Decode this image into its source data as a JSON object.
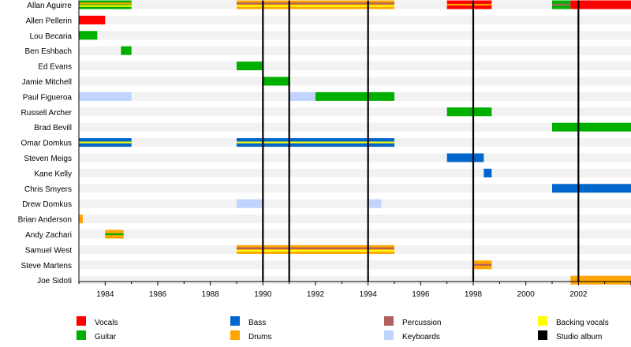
{
  "chart_data": {
    "type": "timeline",
    "title": "",
    "x_range": [
      1983,
      2004
    ],
    "x_ticks": [
      "1984",
      "1986",
      "1988",
      "1990",
      "1992",
      "1994",
      "1996",
      "1998",
      "2000",
      "2002"
    ],
    "members": [
      "Allan Aguirre",
      "Allen Pellerin",
      "Lou Becaria",
      "Ben Eshbach",
      "Ed Evans",
      "Jamie Mitchell",
      "Paul Figueroa",
      "Russell Archer",
      "Brad Bevill",
      "Omar Domkus",
      "Steven Meigs",
      "Kane Kelly",
      "Chris Smyers",
      "Drew Domkus",
      "Brian Anderson",
      "Andy Zachari",
      "Samuel West",
      "Steve Martens",
      "Joe Sidoti"
    ],
    "roles": {
      "vocals": "#ff0000",
      "guitar": "#00b000",
      "bass": "#0066cc",
      "drums": "#ffa500",
      "percussion": "#b06060",
      "keyboards": "#c0d4ff",
      "backing_vocals": "#ffff00",
      "studio_album": "#000000"
    },
    "periods": [
      {
        "member": 0,
        "start": 1983,
        "end": 1985,
        "role": "guitar",
        "stripes": [
          "drums",
          "backing_vocals"
        ]
      },
      {
        "member": 0,
        "start": 1989,
        "end": 1995,
        "role": "drums",
        "stripes": [
          "percussion",
          "backing_vocals"
        ]
      },
      {
        "member": 0,
        "start": 1997,
        "end": 1998.7,
        "role": "vocals",
        "stripes": [
          "drums"
        ]
      },
      {
        "member": 0,
        "start": 2001,
        "end": 2001.7,
        "role": "guitar",
        "stripes": [
          "percussion"
        ]
      },
      {
        "member": 0,
        "start": 2001.7,
        "end": 2004,
        "role": "vocals"
      },
      {
        "member": 1,
        "start": 1983,
        "end": 1984,
        "role": "vocals"
      },
      {
        "member": 2,
        "start": 1983,
        "end": 1983.7,
        "role": "guitar"
      },
      {
        "member": 3,
        "start": 1984.6,
        "end": 1985,
        "role": "guitar"
      },
      {
        "member": 4,
        "start": 1989,
        "end": 1990,
        "role": "guitar"
      },
      {
        "member": 5,
        "start": 1990,
        "end": 1991,
        "role": "guitar"
      },
      {
        "member": 6,
        "start": 1983,
        "end": 1985,
        "role": "keyboards"
      },
      {
        "member": 6,
        "start": 1991,
        "end": 1992,
        "role": "keyboards"
      },
      {
        "member": 6,
        "start": 1992,
        "end": 1995,
        "role": "guitar"
      },
      {
        "member": 7,
        "start": 1997,
        "end": 1998.7,
        "role": "guitar"
      },
      {
        "member": 8,
        "start": 2001,
        "end": 2004,
        "role": "guitar"
      },
      {
        "member": 9,
        "start": 1983,
        "end": 1985,
        "role": "bass",
        "stripes": [
          "backing_vocals"
        ]
      },
      {
        "member": 9,
        "start": 1989,
        "end": 1995,
        "role": "bass",
        "stripes": [
          "backing_vocals"
        ]
      },
      {
        "member": 10,
        "start": 1997,
        "end": 1998.4,
        "role": "bass"
      },
      {
        "member": 11,
        "start": 1998.4,
        "end": 1998.7,
        "role": "bass"
      },
      {
        "member": 12,
        "start": 2001,
        "end": 2004,
        "role": "bass"
      },
      {
        "member": 13,
        "start": 1989,
        "end": 1990,
        "role": "keyboards"
      },
      {
        "member": 13,
        "start": 1994,
        "end": 1994.5,
        "role": "keyboards"
      },
      {
        "member": 14,
        "start": 1983,
        "end": 1983.15,
        "role": "drums"
      },
      {
        "member": 15,
        "start": 1984,
        "end": 1984.7,
        "role": "drums",
        "stripes": [
          "guitar"
        ]
      },
      {
        "member": 16,
        "start": 1989,
        "end": 1995,
        "role": "drums",
        "stripes": [
          "percussion",
          "backing_vocals"
        ]
      },
      {
        "member": 17,
        "start": 1998,
        "end": 1998.7,
        "role": "drums",
        "stripes": [
          "percussion"
        ]
      },
      {
        "member": 18,
        "start": 2001.7,
        "end": 2004,
        "role": "drums"
      }
    ],
    "albums": [
      1990,
      1991,
      1994,
      1998,
      2002
    ],
    "legend": [
      {
        "key": "vocals",
        "label": "Vocals"
      },
      {
        "key": "guitar",
        "label": "Guitar"
      },
      {
        "key": "bass",
        "label": "Bass"
      },
      {
        "key": "drums",
        "label": "Drums"
      },
      {
        "key": "percussion",
        "label": "Percussion"
      },
      {
        "key": "keyboards",
        "label": "Keyboards"
      },
      {
        "key": "backing_vocals",
        "label": "Backing vocals"
      },
      {
        "key": "studio_album",
        "label": "Studio album"
      }
    ]
  }
}
